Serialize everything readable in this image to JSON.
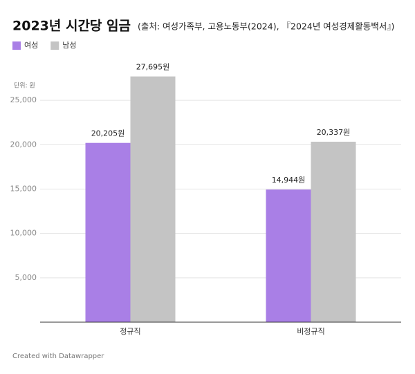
{
  "chart_data": {
    "type": "bar",
    "title": "2023년 시간당 임금",
    "subtitle": "(출처: 여성가족부, 고용노동부(2024), 『2024년 여성경제활동백서』)",
    "unit_label": "단위: 원",
    "categories": [
      "정규직",
      "비정규직"
    ],
    "series": [
      {
        "name": "여성",
        "color": "#a97fe6",
        "values": [
          20205,
          14944
        ],
        "value_labels": [
          "20,205원",
          "14,944원"
        ]
      },
      {
        "name": "남성",
        "color": "#c4c4c4",
        "values": [
          27695,
          20337
        ],
        "value_labels": [
          "27,695원",
          "20,337원"
        ]
      }
    ],
    "ylim": [
      0,
      30000
    ],
    "yticks": [
      {
        "value": 5000,
        "label": "5,000"
      },
      {
        "value": 10000,
        "label": "10,000"
      },
      {
        "value": 15000,
        "label": "15,000"
      },
      {
        "value": 20000,
        "label": "20,000"
      },
      {
        "value": 25000,
        "label": "25,000"
      }
    ],
    "grid": true,
    "footer": "Created with Datawrapper"
  }
}
